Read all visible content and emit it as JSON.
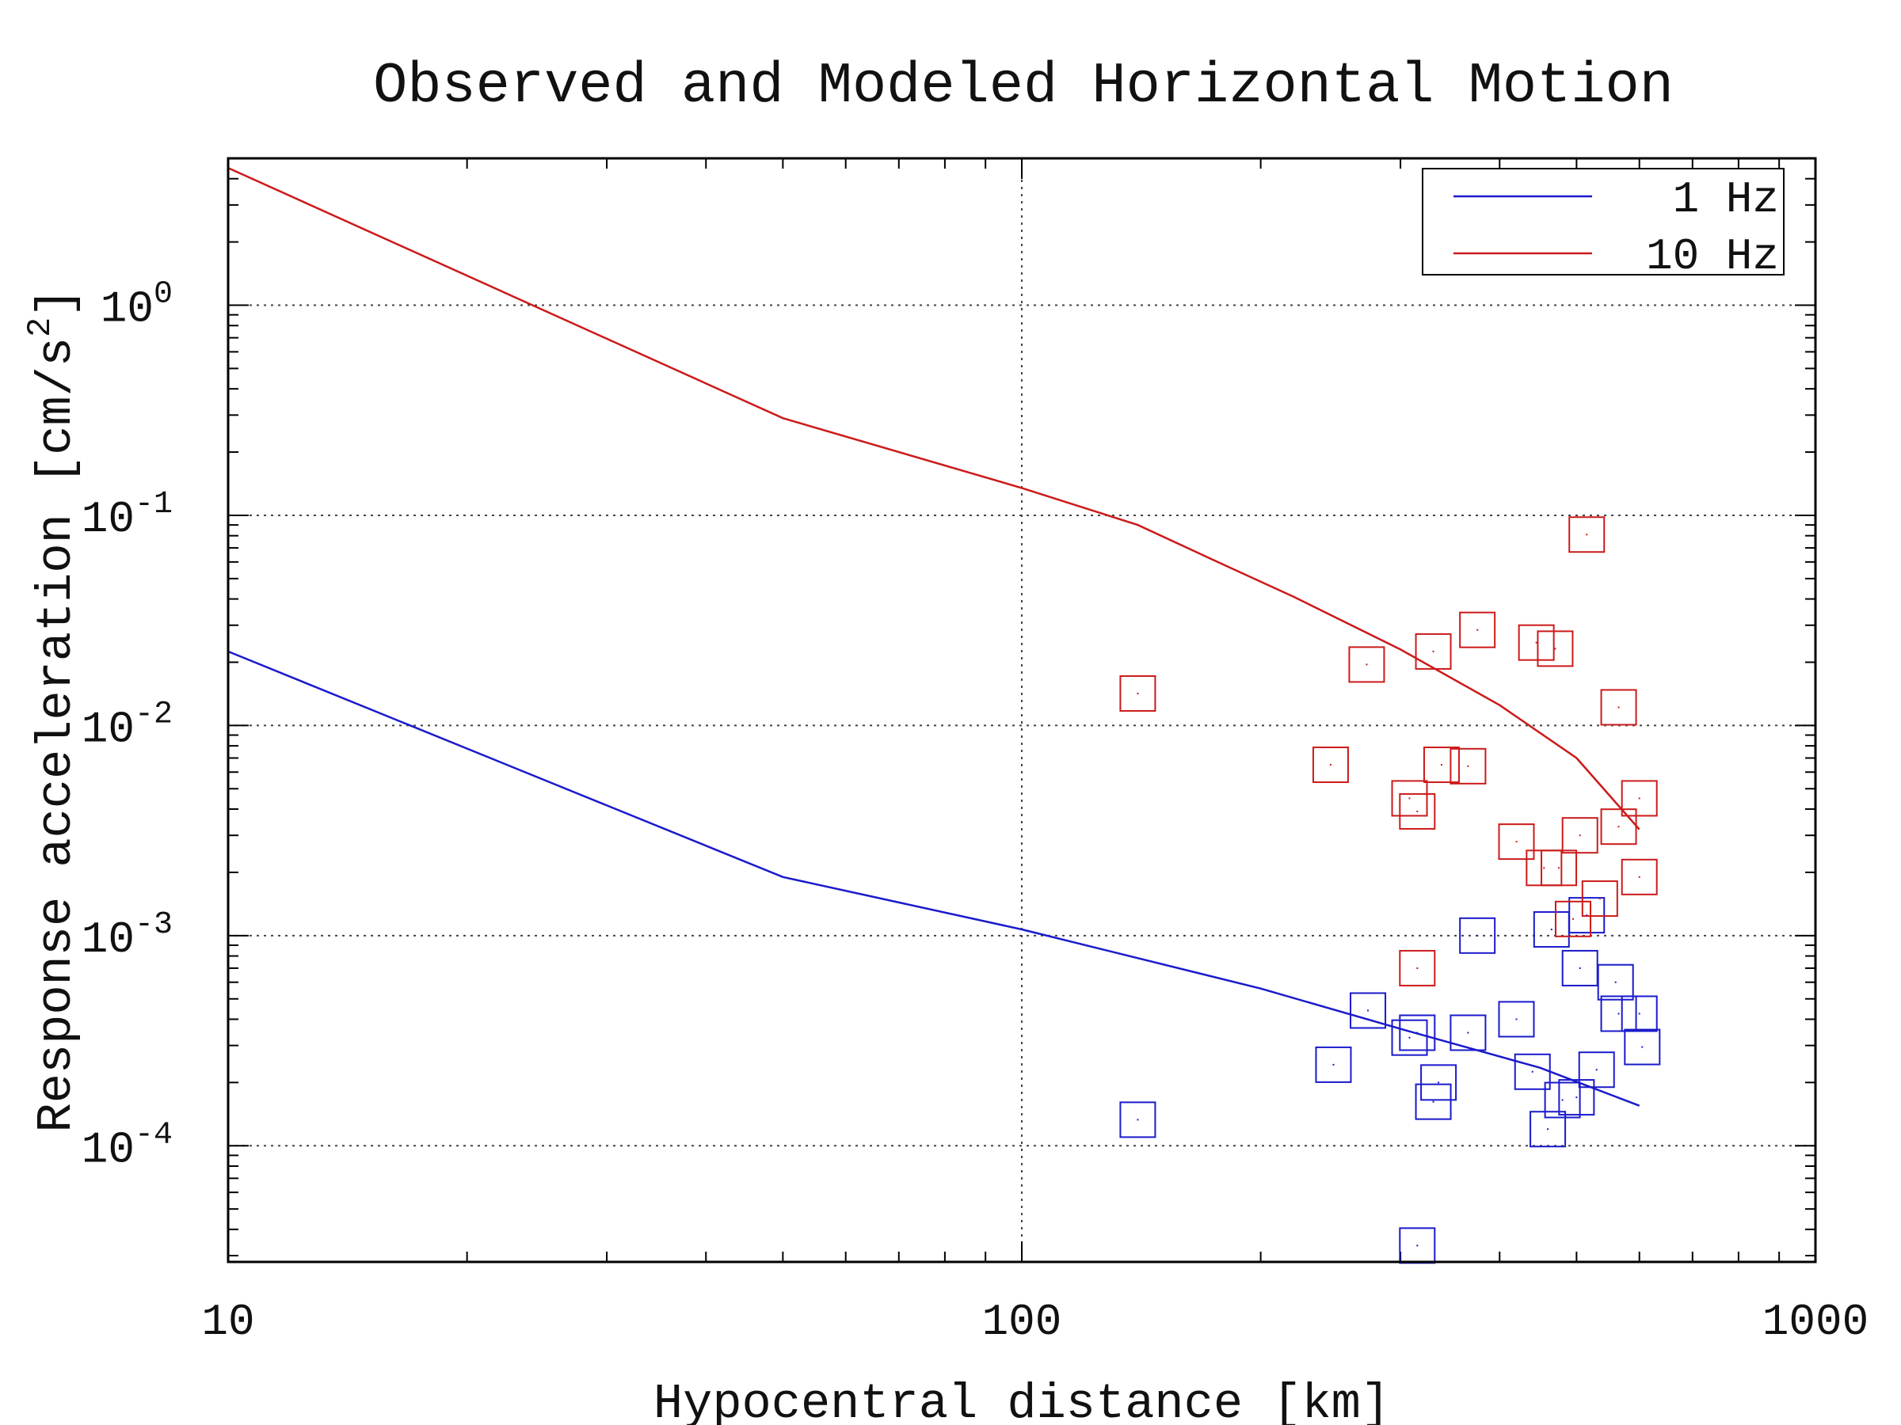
{
  "chart_data": {
    "type": "scatter",
    "title": "Observed and Modeled Horizontal Motion",
    "xlabel": "Hypocentral distance [km]",
    "ylabel": "Response acceleration [cm/s",
    "ylabel_sup": "2",
    "ylabel_end": "]",
    "x_scale": "log",
    "y_scale": "log",
    "xlim": [
      10,
      1000
    ],
    "ylim": [
      2.8e-05,
      5
    ],
    "x_ticks": [
      {
        "value": 10,
        "label": "10"
      },
      {
        "value": 100,
        "label": "100"
      },
      {
        "value": 1000,
        "label": "1000"
      }
    ],
    "y_ticks": [
      {
        "value": 1,
        "base": "10",
        "exp": "0"
      },
      {
        "value": 0.1,
        "base": "10",
        "exp": "-1"
      },
      {
        "value": 0.01,
        "base": "10",
        "exp": "-2"
      },
      {
        "value": 0.001,
        "base": "10",
        "exp": "-3"
      },
      {
        "value": 0.0001,
        "base": "10",
        "exp": "-4"
      }
    ],
    "grid": true,
    "legend_position": "top-right",
    "series": [
      {
        "name": "1 Hz",
        "color": "#1a1acc",
        "line": [
          [
            10,
            0.0225
          ],
          [
            50,
            0.0019
          ],
          [
            100,
            0.00107
          ],
          [
            200,
            0.00056
          ],
          [
            300,
            0.00036
          ],
          [
            450,
            0.000235
          ],
          [
            600,
            0.000155
          ]
        ],
        "points": [
          [
            140,
            0.000133
          ],
          [
            247,
            0.000243
          ],
          [
            273,
            0.00044
          ],
          [
            308,
            0.000327
          ],
          [
            315,
            0.000345
          ],
          [
            330,
            0.000162
          ],
          [
            335,
            0.0002
          ],
          [
            365,
            0.000345
          ],
          [
            375,
            0.001
          ],
          [
            420,
            0.0004
          ],
          [
            440,
            0.000225
          ],
          [
            460,
            0.00012
          ],
          [
            465,
            0.00107
          ],
          [
            480,
            0.000165
          ],
          [
            500,
            0.00017
          ],
          [
            505,
            0.0007
          ],
          [
            515,
            0.00125
          ],
          [
            530,
            0.00023
          ],
          [
            560,
            0.0006
          ],
          [
            565,
            0.000425
          ],
          [
            600,
            0.000425
          ],
          [
            605,
            0.000295
          ],
          [
            315,
            3.35e-05
          ]
        ]
      },
      {
        "name": "10 Hz",
        "color": "#cc1a1a",
        "line": [
          [
            10,
            4.5
          ],
          [
            50,
            0.29
          ],
          [
            100,
            0.135
          ],
          [
            140,
            0.09
          ],
          [
            180,
            0.058
          ],
          [
            220,
            0.041
          ],
          [
            300,
            0.023
          ],
          [
            400,
            0.0125
          ],
          [
            500,
            0.007
          ],
          [
            600,
            0.0032
          ]
        ],
        "points": [
          [
            140,
            0.0142
          ],
          [
            245,
            0.0065
          ],
          [
            272,
            0.0195
          ],
          [
            308,
            0.0045
          ],
          [
            315,
            0.0039
          ],
          [
            315,
            0.0007
          ],
          [
            330,
            0.0225
          ],
          [
            338,
            0.0065
          ],
          [
            365,
            0.0064
          ],
          [
            375,
            0.0285
          ],
          [
            420,
            0.0028
          ],
          [
            445,
            0.0248
          ],
          [
            455,
            0.0021
          ],
          [
            470,
            0.0232
          ],
          [
            475,
            0.0021
          ],
          [
            495,
            0.0012
          ],
          [
            505,
            0.003
          ],
          [
            515,
            0.081
          ],
          [
            535,
            0.0015
          ],
          [
            565,
            0.0122
          ],
          [
            565,
            0.0033
          ],
          [
            600,
            0.0045
          ],
          [
            600,
            0.0019
          ]
        ]
      }
    ]
  }
}
